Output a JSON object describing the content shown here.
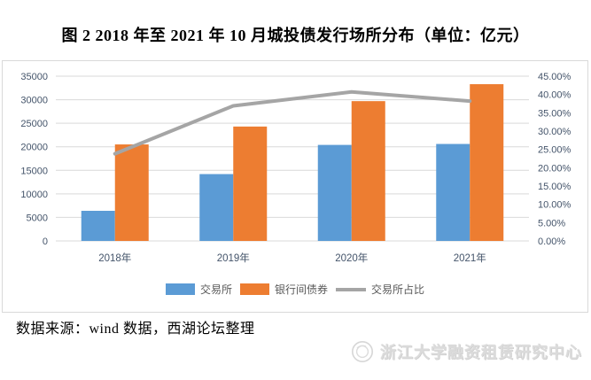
{
  "title": "图 2 2018 年至 2021 年 10 月城投债发行场所分布（单位：亿元）",
  "footer": {
    "source": "数据来源：wind 数据，西湖论坛整理"
  },
  "watermark": {
    "text": "浙江大学融资租赁研究中心"
  },
  "colors": {
    "exchange_blue": "#5B9BD5",
    "interbank_orange": "#ED7D31",
    "ratio_gray": "#A5A5A5",
    "axis_text": "#44546A",
    "gridline": "#D9D9D9",
    "chart_border": "#D9D9D9",
    "legend_text": "#595959",
    "watermark_gray": "#DBDBDB"
  },
  "chart_data": {
    "type": "bar",
    "subtype": "bar+line combo, dual axis",
    "title": "图 2 2018 年至 2021 年 10 月城投债发行场所分布（单位：亿元）",
    "categories": [
      "2018年",
      "2019年",
      "2020年",
      "2021年"
    ],
    "series": [
      {
        "name": "交易所",
        "type": "bar",
        "axis": "left",
        "color": "#5B9BD5",
        "values": [
          6400,
          14200,
          20400,
          20600
        ]
      },
      {
        "name": "银行间债券",
        "type": "bar",
        "axis": "left",
        "color": "#ED7D31",
        "values": [
          20500,
          24300,
          29700,
          33300
        ]
      },
      {
        "name": "交易所占比",
        "type": "line",
        "axis": "right",
        "color": "#A5A5A5",
        "values": [
          23.8,
          36.9,
          40.7,
          38.2
        ]
      }
    ],
    "left_axis": {
      "min": 0,
      "max": 35000,
      "step": 5000,
      "ticks": [
        "0",
        "5000",
        "10000",
        "15000",
        "20000",
        "25000",
        "30000",
        "35000"
      ]
    },
    "right_axis": {
      "min": 0,
      "max": 45,
      "step": 5,
      "ticks": [
        "0.00%",
        "5.00%",
        "10.00%",
        "15.00%",
        "20.00%",
        "25.00%",
        "30.00%",
        "35.00%",
        "40.00%",
        "45.00%"
      ]
    },
    "legend": [
      {
        "label": "交易所",
        "swatch": "bar",
        "color": "#5B9BD5"
      },
      {
        "label": "银行间债券",
        "swatch": "bar",
        "color": "#ED7D31"
      },
      {
        "label": "交易所占比",
        "swatch": "line",
        "color": "#A5A5A5"
      }
    ],
    "grid": true,
    "legend_position": "bottom",
    "xlabel": "",
    "ylabel": ""
  }
}
